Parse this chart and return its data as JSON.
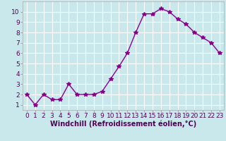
{
  "x": [
    0,
    1,
    2,
    3,
    4,
    5,
    6,
    7,
    8,
    9,
    10,
    11,
    12,
    13,
    14,
    15,
    16,
    17,
    18,
    19,
    20,
    21,
    22,
    23
  ],
  "y": [
    2,
    1,
    2,
    1.5,
    1.5,
    3,
    2,
    2,
    2,
    2.3,
    3.5,
    4.7,
    6,
    8,
    9.8,
    9.8,
    10.3,
    10,
    9.3,
    8.8,
    8,
    7.5,
    7,
    6
  ],
  "line_color": "#8b008b",
  "marker": "*",
  "marker_size": 4,
  "bg_color": "#c8e8ec",
  "grid_color": "#ffffff",
  "xlabel": "Windchill (Refroidissement éolien,°C)",
  "ylabel": "",
  "ylim": [
    0.5,
    11
  ],
  "xlim": [
    -0.5,
    23.5
  ],
  "yticks": [
    1,
    2,
    3,
    4,
    5,
    6,
    7,
    8,
    9,
    10
  ],
  "xticks": [
    0,
    1,
    2,
    3,
    4,
    5,
    6,
    7,
    8,
    9,
    10,
    11,
    12,
    13,
    14,
    15,
    16,
    17,
    18,
    19,
    20,
    21,
    22,
    23
  ],
  "tick_fontsize": 6.5,
  "xlabel_fontsize": 7,
  "line_width": 1.0
}
